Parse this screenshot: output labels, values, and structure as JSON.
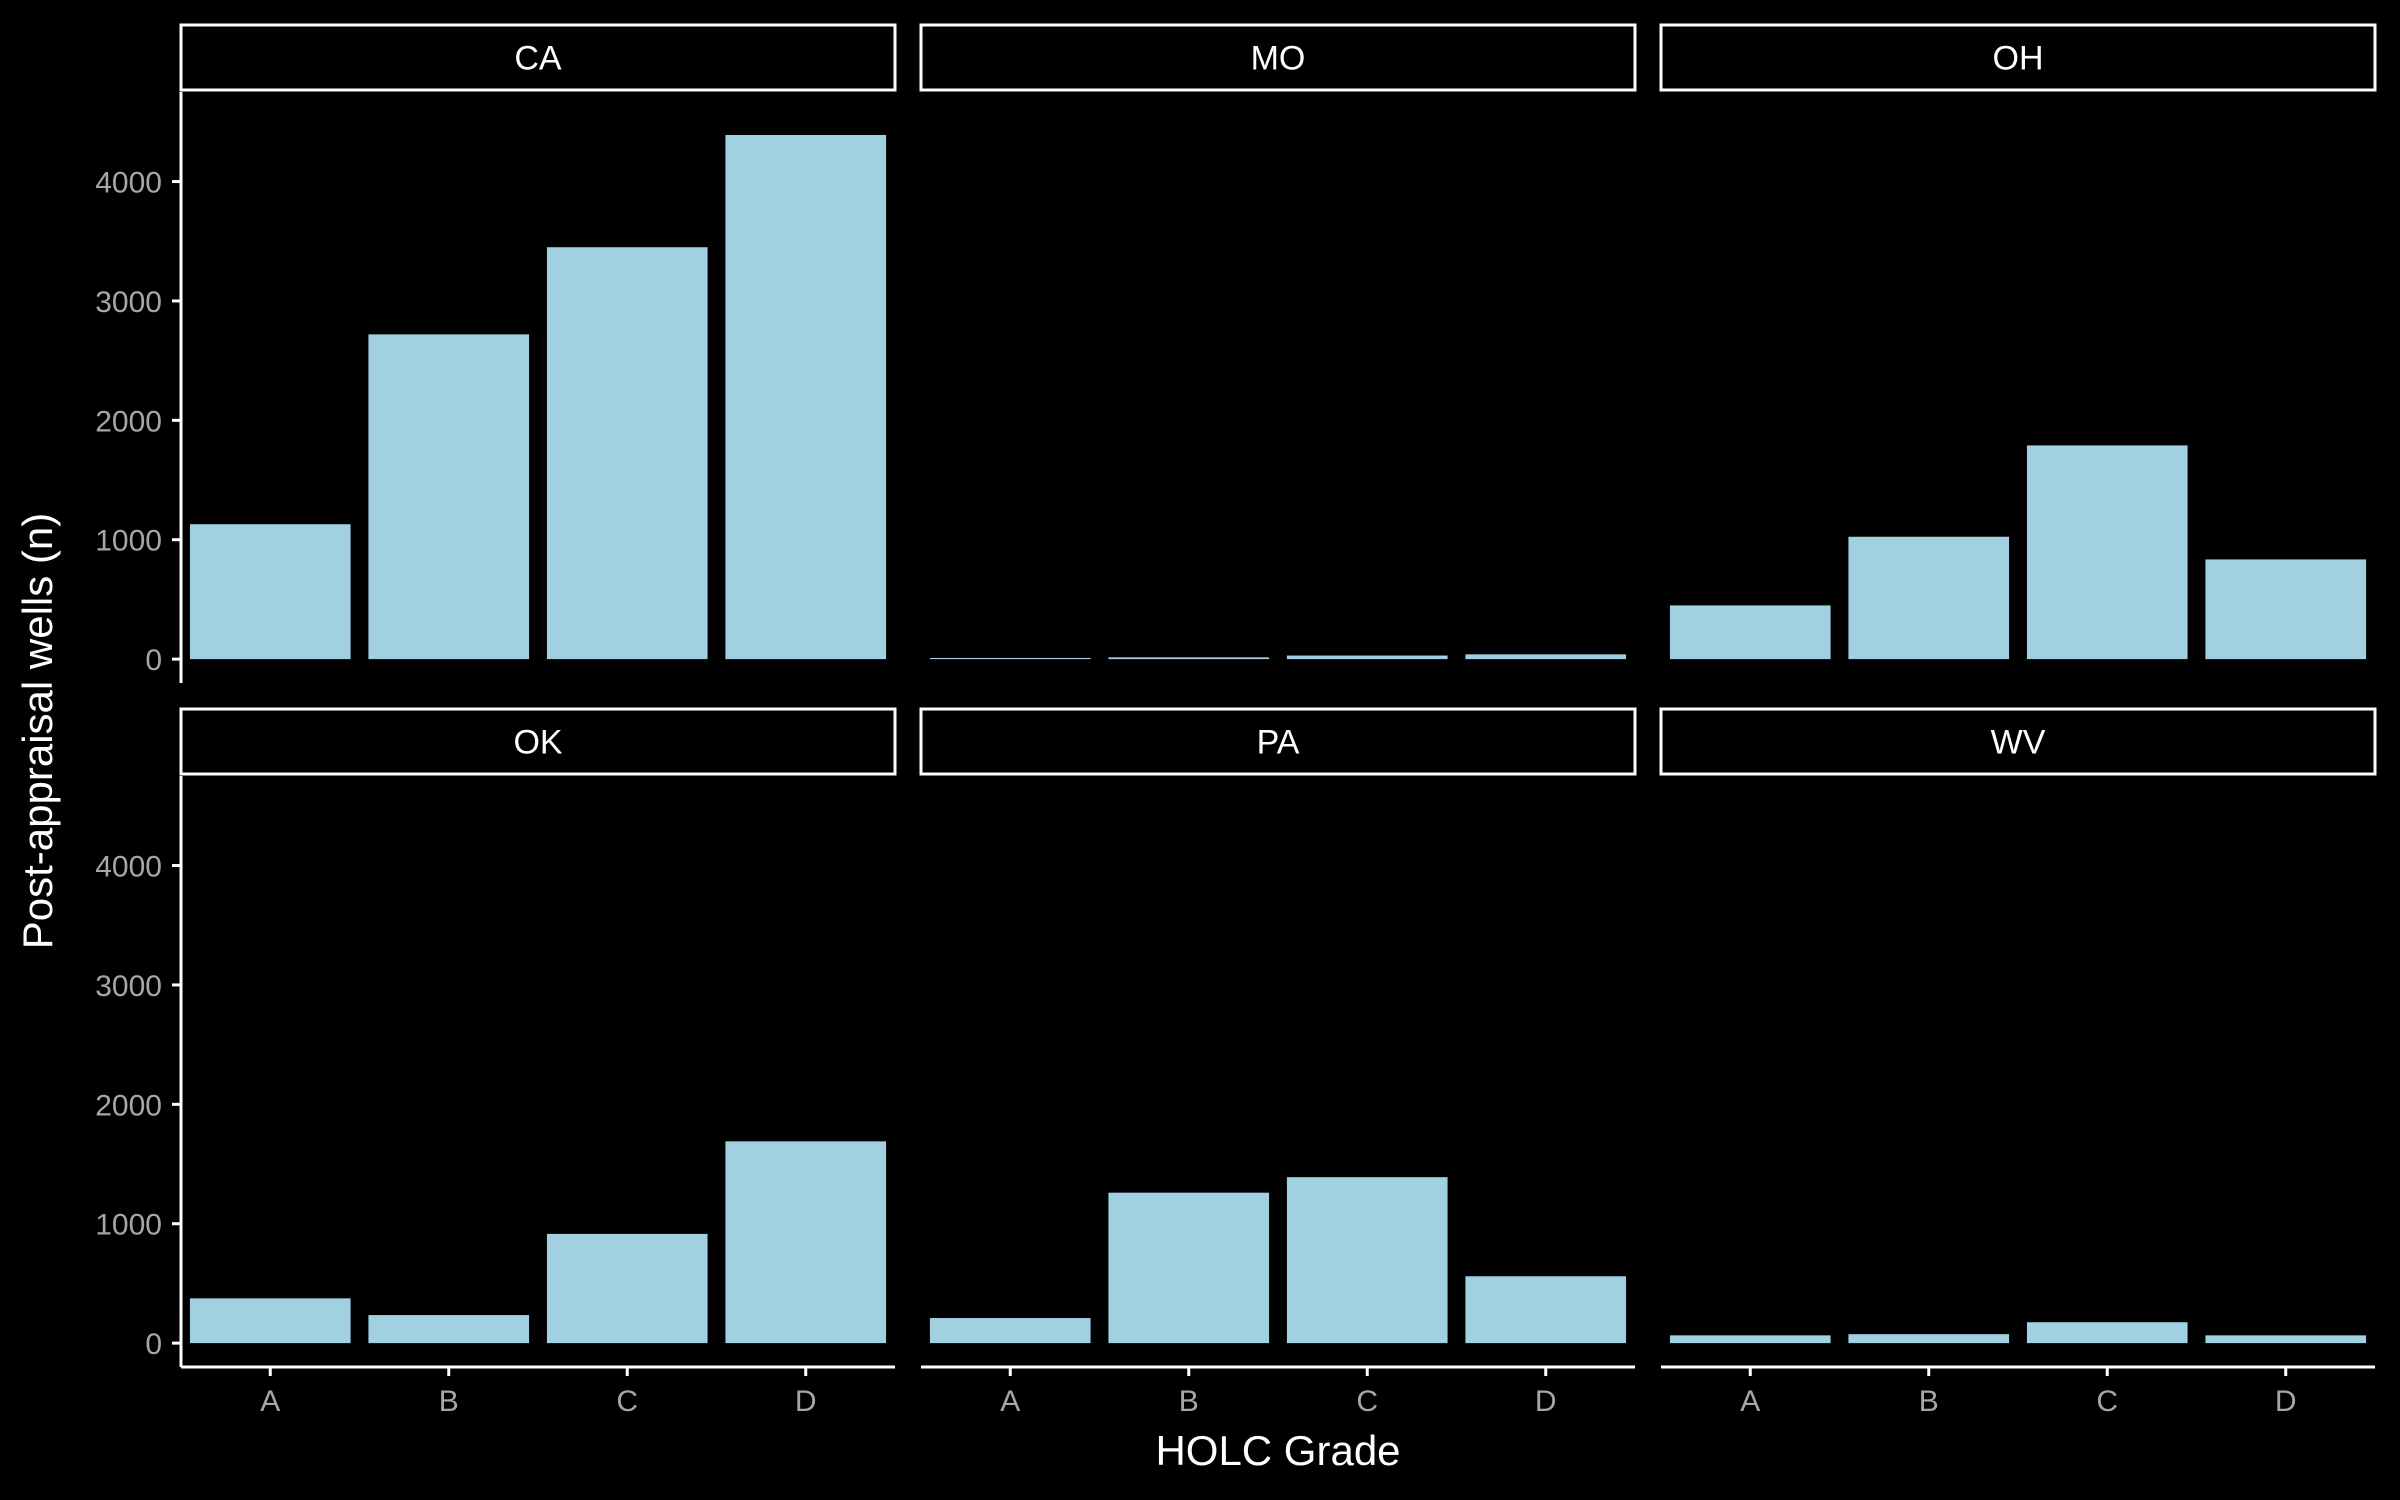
{
  "chart_data": {
    "type": "bar",
    "facet_layout": {
      "rows": 2,
      "cols": 3
    },
    "xlabel": "HOLC Grade",
    "ylabel": "Post-appraisal wells (n)",
    "categories": [
      "A",
      "B",
      "C",
      "D"
    ],
    "ylim": [
      -200,
      4750
    ],
    "yticks": [
      0,
      1000,
      2000,
      3000,
      4000
    ],
    "grid": false,
    "colors": {
      "bar": "#a1d1e1",
      "background": "#000000",
      "axis": "#ffffff",
      "tick_label": "#a6a6a6",
      "text": "#ffffff"
    },
    "panels": [
      {
        "name": "CA",
        "values": [
          1130,
          2720,
          3450,
          4390
        ]
      },
      {
        "name": "MO",
        "values": [
          10,
          15,
          30,
          40
        ]
      },
      {
        "name": "OH",
        "values": [
          450,
          1025,
          1790,
          835
        ]
      },
      {
        "name": "OK",
        "values": [
          375,
          235,
          915,
          1690
        ]
      },
      {
        "name": "PA",
        "values": [
          210,
          1260,
          1390,
          560
        ]
      },
      {
        "name": "WV",
        "values": [
          65,
          75,
          175,
          65
        ]
      }
    ]
  }
}
